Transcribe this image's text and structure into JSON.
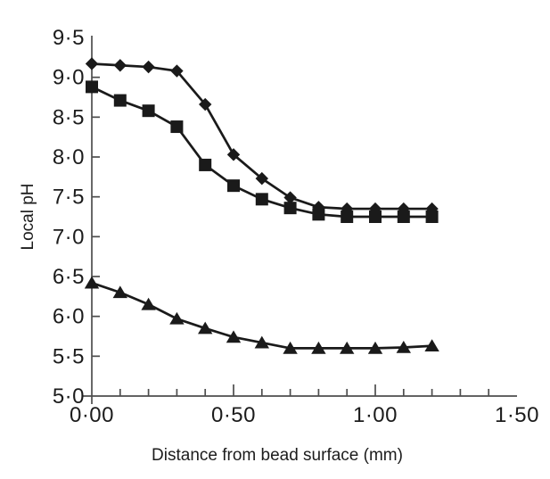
{
  "figure": {
    "background_color": "#ffffff"
  },
  "chart_data": {
    "type": "line",
    "title": "",
    "xlabel": "Distance from bead surface (mm)",
    "ylabel": "Local pH",
    "xlim": [
      0.0,
      1.5
    ],
    "ylim": [
      5.0,
      9.5
    ],
    "x_major_ticks": [
      0.0,
      0.5,
      1.0,
      1.5
    ],
    "x_tick_labels": [
      "0·00",
      "0·50",
      "1·00",
      "1·50"
    ],
    "x_minor_tick_step": 0.1,
    "y_tick_step": 0.5,
    "y_tick_labels": [
      "5·0",
      "5·5",
      "6·0",
      "6·5",
      "7·0",
      "7·5",
      "8·0",
      "8·5",
      "9·0",
      "9·5"
    ],
    "decimal_separator_style": "middle-dot",
    "grid": false,
    "legend": "none",
    "line_color": "#1a1a1a",
    "axis_color": "#4d4d4d",
    "x": [
      0.0,
      0.1,
      0.2,
      0.3,
      0.4,
      0.5,
      0.6,
      0.7,
      0.8,
      0.9,
      1.0,
      1.1,
      1.2
    ],
    "series": [
      {
        "name": "diamond-series",
        "marker": "filled-diamond",
        "values": [
          9.17,
          9.15,
          9.13,
          9.08,
          8.66,
          8.03,
          7.73,
          7.49,
          7.37,
          7.35,
          7.35,
          7.35,
          7.35
        ]
      },
      {
        "name": "square-series",
        "marker": "filled-square",
        "values": [
          8.88,
          8.71,
          8.58,
          8.38,
          7.9,
          7.64,
          7.47,
          7.36,
          7.28,
          7.25,
          7.25,
          7.25,
          7.25
        ]
      },
      {
        "name": "triangle-series",
        "marker": "filled-triangle",
        "values": [
          6.42,
          6.3,
          6.15,
          5.97,
          5.85,
          5.74,
          5.67,
          5.6,
          5.6,
          5.6,
          5.6,
          5.61,
          5.63
        ]
      }
    ]
  }
}
